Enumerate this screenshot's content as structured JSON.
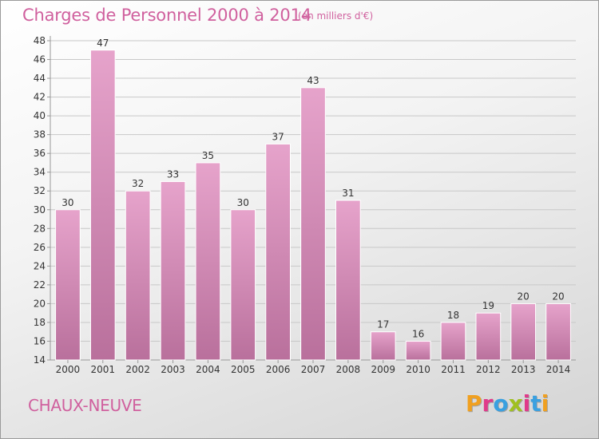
{
  "header": {
    "title": "Charges de Personnel 2000 à 2014",
    "subtitle": "(en milliers d'€)"
  },
  "footer": {
    "place": "CHAUX-NEUVE",
    "logo_text": "Proxiti",
    "logo_letters": [
      {
        "char": "P",
        "color": "#f0a020"
      },
      {
        "char": "r",
        "color": "#e03a8a"
      },
      {
        "char": "o",
        "color": "#3aa0e0"
      },
      {
        "char": "x",
        "color": "#a0c020"
      },
      {
        "char": "i",
        "color": "#e03a8a"
      },
      {
        "char": "t",
        "color": "#3aa0e0"
      },
      {
        "char": "i",
        "color": "#f0a020"
      }
    ]
  },
  "colors": {
    "bar_fill_light": "#e6a3cb",
    "bar_fill_dark": "#b9709c",
    "bar_stroke": "#ffffff",
    "grid": "#c8c8c8",
    "title": "#d0609e"
  },
  "chart_data": {
    "type": "bar",
    "categories": [
      "2000",
      "2001",
      "2002",
      "2003",
      "2004",
      "2005",
      "2006",
      "2007",
      "2008",
      "2009",
      "2010",
      "2011",
      "2012",
      "2013",
      "2014"
    ],
    "values": [
      30,
      47,
      32,
      33,
      35,
      30,
      37,
      43,
      31,
      17,
      16,
      18,
      19,
      20,
      20
    ],
    "ylim": [
      14,
      48
    ],
    "yticks": [
      14,
      16,
      18,
      20,
      22,
      24,
      26,
      28,
      30,
      32,
      34,
      36,
      38,
      40,
      42,
      44,
      46,
      48
    ],
    "grid": true,
    "title": "Charges de Personnel 2000 à 2014",
    "xlabel": "",
    "ylabel": ""
  }
}
